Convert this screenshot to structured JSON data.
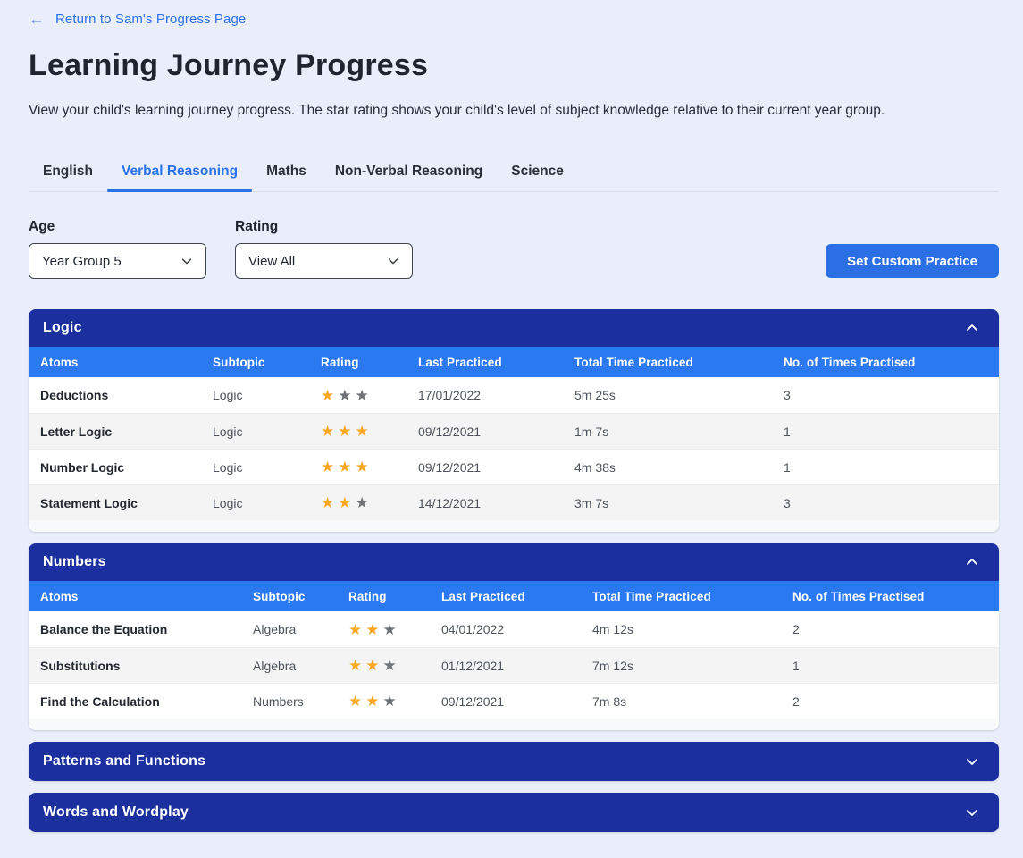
{
  "header": {
    "back_link": "Return to Sam's Progress Page",
    "title": "Learning Journey Progress",
    "subtitle": "View your child's learning journey progress. The star rating shows your child's level of subject knowledge relative to their current year group."
  },
  "tabs": [
    {
      "label": "English",
      "active": false
    },
    {
      "label": "Verbal Reasoning",
      "active": true
    },
    {
      "label": "Maths",
      "active": false
    },
    {
      "label": "Non-Verbal Reasoning",
      "active": false
    },
    {
      "label": "Science",
      "active": false
    }
  ],
  "filters": {
    "age": {
      "label": "Age",
      "value": "Year Group 5"
    },
    "rating": {
      "label": "Rating",
      "value": "View All"
    },
    "action_button": "Set Custom Practice"
  },
  "table": {
    "columns": [
      "Atoms",
      "Subtopic",
      "Rating",
      "Last Practiced",
      "Total Time Practiced",
      "No. of Times Practised"
    ],
    "max_stars": 3
  },
  "sections": [
    {
      "title": "Logic",
      "expanded": true,
      "rows": [
        {
          "atom": "Deductions",
          "subtopic": "Logic",
          "rating": 1,
          "last_practiced": "17/01/2022",
          "total_time": "5m 25s",
          "times_practised": "3"
        },
        {
          "atom": "Letter Logic",
          "subtopic": "Logic",
          "rating": 3,
          "last_practiced": "09/12/2021",
          "total_time": "1m 7s",
          "times_practised": "1"
        },
        {
          "atom": "Number Logic",
          "subtopic": "Logic",
          "rating": 3,
          "last_practiced": "09/12/2021",
          "total_time": "4m 38s",
          "times_practised": "1"
        },
        {
          "atom": "Statement Logic",
          "subtopic": "Logic",
          "rating": 2,
          "last_practiced": "14/12/2021",
          "total_time": "3m 7s",
          "times_practised": "3"
        }
      ]
    },
    {
      "title": "Numbers",
      "expanded": true,
      "rows": [
        {
          "atom": "Balance the Equation",
          "subtopic": "Algebra",
          "rating": 2,
          "last_practiced": "04/01/2022",
          "total_time": "4m 12s",
          "times_practised": "2"
        },
        {
          "atom": "Substitutions",
          "subtopic": "Algebra",
          "rating": 2,
          "last_practiced": "01/12/2021",
          "total_time": "7m 12s",
          "times_practised": "1"
        },
        {
          "atom": "Find the Calculation",
          "subtopic": "Numbers",
          "rating": 2,
          "last_practiced": "09/12/2021",
          "total_time": "7m 8s",
          "times_practised": "2"
        }
      ]
    },
    {
      "title": "Patterns and Functions",
      "expanded": false,
      "rows": []
    },
    {
      "title": "Words and Wordplay",
      "expanded": false,
      "rows": []
    }
  ],
  "colors": {
    "accent_blue": "#2b72e8",
    "section_header_blue": "#1b2f9e",
    "table_header_blue": "#2b79f1",
    "button_blue": "#2a6fe4",
    "star_gold": "#f9a825",
    "star_gray": "#6f7377",
    "page_background": "#e9eefa"
  },
  "icons": {
    "back_arrow": "←",
    "star": "★",
    "chevron_up": "chevron-up",
    "chevron_down": "chevron-down"
  }
}
